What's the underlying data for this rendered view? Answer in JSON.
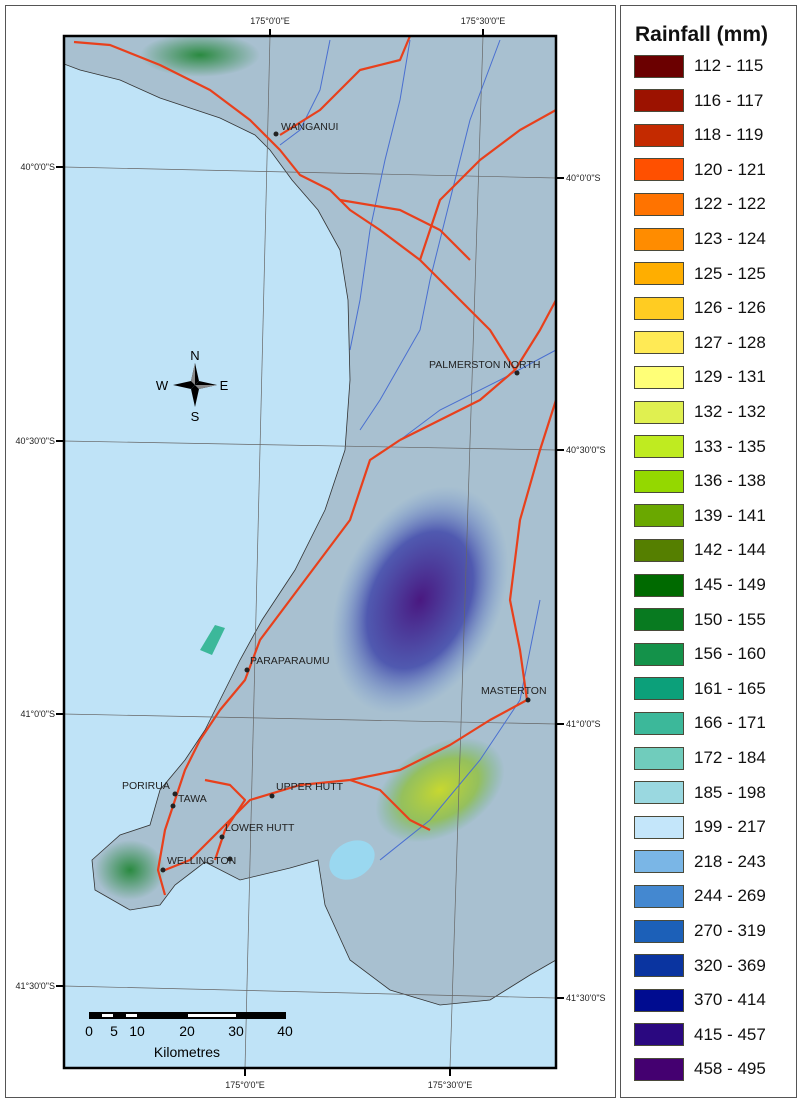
{
  "legend": {
    "title": "Rainfall (mm)",
    "items": [
      {
        "label": "112 - 115",
        "color": "#6b0000"
      },
      {
        "label": "116 - 117",
        "color": "#9c1200"
      },
      {
        "label": "118 - 119",
        "color": "#c42a00"
      },
      {
        "label": "120 - 121",
        "color": "#ff5000"
      },
      {
        "label": "122 - 122",
        "color": "#ff7300"
      },
      {
        "label": "123 - 124",
        "color": "#ff8c00"
      },
      {
        "label": "125 - 125",
        "color": "#ffae00"
      },
      {
        "label": "126 - 126",
        "color": "#ffcc22"
      },
      {
        "label": "127 - 128",
        "color": "#ffea55"
      },
      {
        "label": "129 - 131",
        "color": "#ffff77"
      },
      {
        "label": "132 - 132",
        "color": "#e0f050"
      },
      {
        "label": "133 - 135",
        "color": "#bfeb20"
      },
      {
        "label": "136 - 138",
        "color": "#94d800"
      },
      {
        "label": "139 - 141",
        "color": "#6aa800"
      },
      {
        "label": "142 - 144",
        "color": "#557f00"
      },
      {
        "label": "145 - 149",
        "color": "#006a00"
      },
      {
        "label": "150 - 155",
        "color": "#087a20"
      },
      {
        "label": "156 - 160",
        "color": "#14924a"
      },
      {
        "label": "161 - 165",
        "color": "#0ca07a"
      },
      {
        "label": "166 - 171",
        "color": "#3cb89a"
      },
      {
        "label": "172 - 184",
        "color": "#70ccbc"
      },
      {
        "label": "185 - 198",
        "color": "#9ad8e0"
      },
      {
        "label": "199 - 217",
        "color": "#c4e6fa"
      },
      {
        "label": "218 - 243",
        "color": "#7ab6e6"
      },
      {
        "label": "244 - 269",
        "color": "#4488d0"
      },
      {
        "label": "270 - 319",
        "color": "#1c60b8"
      },
      {
        "label": "320 - 369",
        "color": "#0a34a0"
      },
      {
        "label": "370 - 414",
        "color": "#000c90"
      },
      {
        "label": "415 - 457",
        "color": "#2a0880"
      },
      {
        "label": "458 - 495",
        "color": "#440070"
      }
    ]
  },
  "map": {
    "grid": {
      "lon_top": [
        "175°0'0\"E",
        "175°30'0\"E"
      ],
      "lon_bottom": [
        "175°0'0\"E",
        "175°30'0\"E"
      ],
      "lat_left": [
        "40°0'0\"S",
        "40°30'0\"S",
        "41°0'0\"S",
        "41°30'0\"S"
      ],
      "lat_right": [
        "40°0'0\"S",
        "40°30'0\"S",
        "41°0'0\"S",
        "41°30'0\"S"
      ]
    },
    "cities": {
      "wanganui": "WANGANUI",
      "palmerston_north": "PALMERSTON NORTH",
      "paraparaumu": "PARAPARAUMU",
      "masterton": "MASTERTON",
      "porirua": "PORIRUA",
      "tawa": "TAWA",
      "upper_hutt": "UPPER HUTT",
      "lower_hutt": "LOWER HUTT",
      "wellington": "WELLINGTON"
    },
    "compass": {
      "n": "N",
      "s": "S",
      "e": "E",
      "w": "W"
    },
    "scale": {
      "ticks": [
        "0",
        "5",
        "10",
        "20",
        "30",
        "40"
      ],
      "units": "Kilometres"
    },
    "colors": {
      "sea": "#bfe3f7",
      "roads": "#e8401c",
      "rivers": "#4a6fd0"
    }
  }
}
